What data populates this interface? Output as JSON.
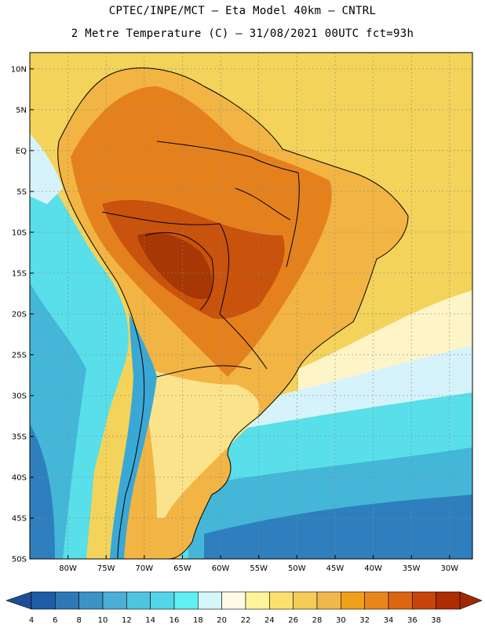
{
  "title_line1": "CPTEC/INPE/MCT –  Eta Model 40km – CNTRL",
  "title_line2": "2 Metre Temperature (C) – 31/08/2021 00UTC fct=93h",
  "lat_labels": [
    "10N",
    "5N",
    "EQ",
    "5S",
    "10S",
    "15S",
    "20S",
    "25S",
    "30S",
    "35S",
    "40S",
    "45S",
    "50S"
  ],
  "lon_labels": [
    "80W",
    "75W",
    "70W",
    "65W",
    "60W",
    "55W",
    "50W",
    "45W",
    "40W",
    "35W",
    "30W"
  ],
  "colorbar": {
    "labels": [
      "4",
      "6",
      "8",
      "10",
      "12",
      "14",
      "16",
      "18",
      "20",
      "22",
      "24",
      "26",
      "28",
      "30",
      "32",
      "34",
      "36",
      "38"
    ],
    "colors": [
      "#1e5ca8",
      "#2f78b8",
      "#3d92c6",
      "#4aaed6",
      "#4fc4e0",
      "#52d6e8",
      "#5ef0f4",
      "#d4f6fc",
      "#fff9e6",
      "#fff49a",
      "#fbe06e",
      "#f5cc58",
      "#f0b84a",
      "#f0a018",
      "#e8861c",
      "#dc6510",
      "#c84408",
      "#ad2c00"
    ],
    "low_color": "#1c4f96",
    "high_color": "#a02800"
  },
  "map_colors": {
    "ocean_north": "#f3d35a",
    "ocean_south_warm": "#fdf4c8",
    "ocean_pale": "#d6f3fb",
    "ocean_cyan": "#58dfe9",
    "ocean_mid": "#44b7d8",
    "ocean_deep": "#2f7fbf",
    "land_warm": "#f2b443",
    "land_hot": "#e5811d",
    "land_very_hot": "#c9520d",
    "land_extreme": "#a73805",
    "andes_cold": "#3aa8d6",
    "south_land": "#fbe38c"
  }
}
